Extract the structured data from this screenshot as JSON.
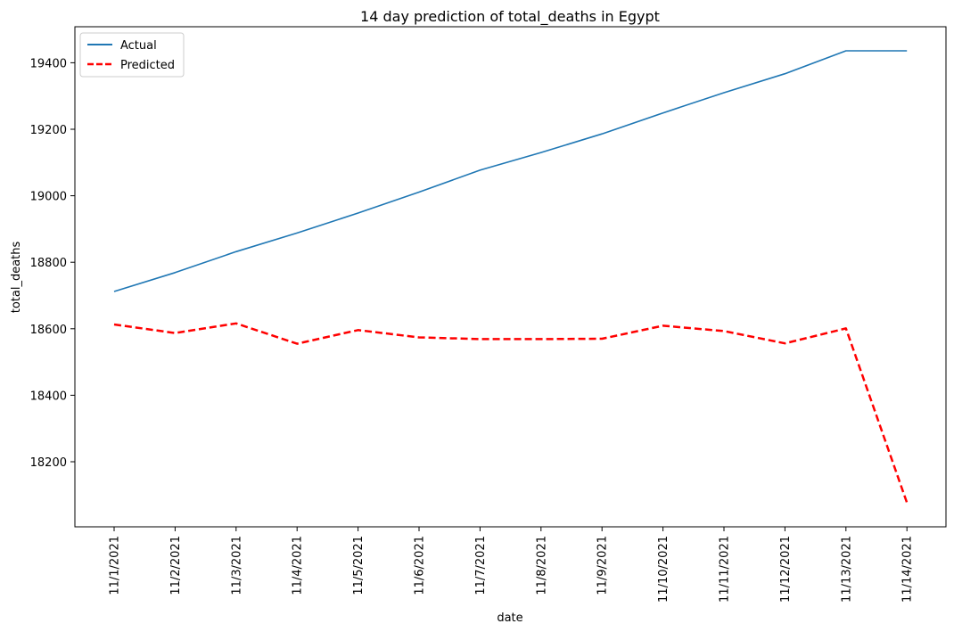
{
  "chart_data": {
    "type": "line",
    "title": "14 day prediction of total_deaths in Egypt",
    "xlabel": "date",
    "ylabel": "total_deaths",
    "categories": [
      "11/1/2021",
      "11/2/2021",
      "11/3/2021",
      "11/4/2021",
      "11/5/2021",
      "11/6/2021",
      "11/7/2021",
      "11/8/2021",
      "11/9/2021",
      "11/10/2021",
      "11/11/2021",
      "11/12/2021",
      "11/13/2021",
      "11/14/2021"
    ],
    "y_ticks": [
      18200,
      18400,
      18600,
      18800,
      19000,
      19200,
      19400
    ],
    "ylim": [
      18015,
      19510
    ],
    "grid": false,
    "legend_position": "top-left",
    "series": [
      {
        "name": "Actual",
        "color": "#1f77b4",
        "style": "solid",
        "values": [
          18712,
          18769,
          18832,
          18888,
          18948,
          19011,
          19077,
          19130,
          19186,
          19249,
          19310,
          19367,
          19436,
          19436
        ]
      },
      {
        "name": "Predicted",
        "color": "#ff0000",
        "style": "dashed",
        "values": [
          18613,
          18587,
          18616,
          18555,
          18596,
          18574,
          18569,
          18569,
          18570,
          18609,
          18593,
          18556,
          18601,
          18077
        ]
      }
    ]
  }
}
